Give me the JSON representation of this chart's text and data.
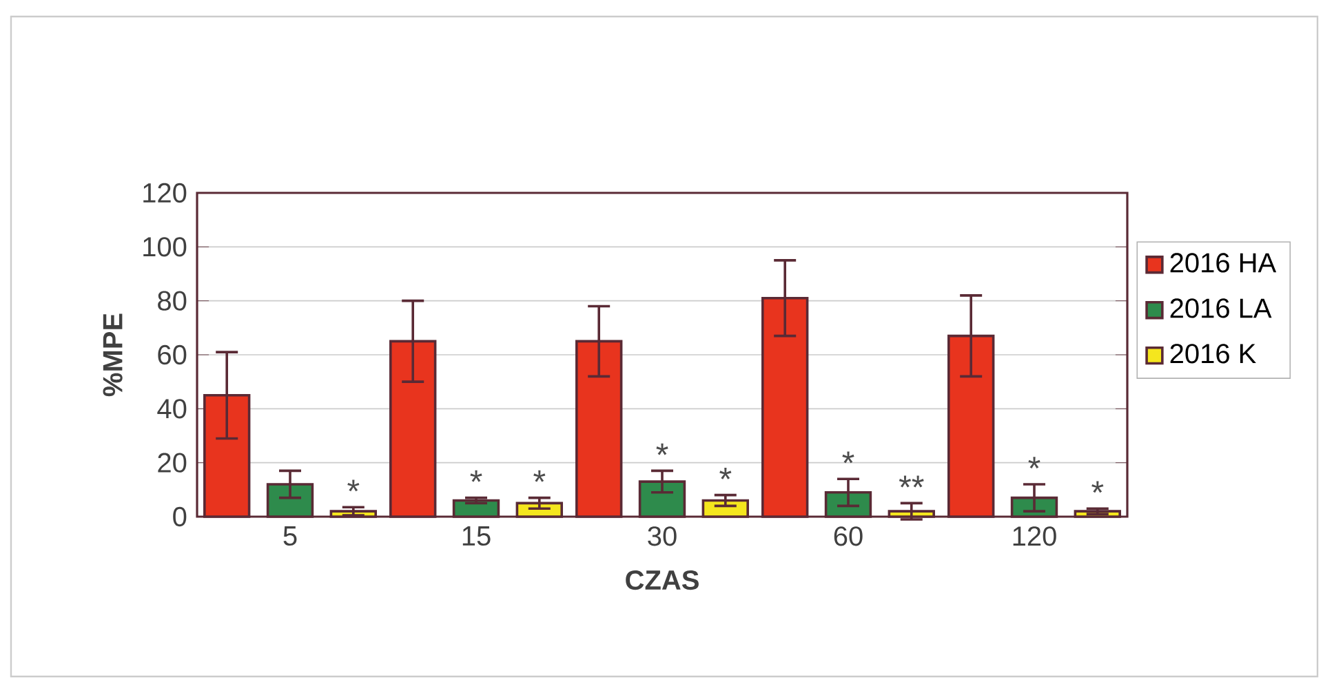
{
  "chart_data": {
    "type": "bar",
    "xlabel": "CZAS",
    "ylabel": "%MPE",
    "categories": [
      "5",
      "15",
      "30",
      "60",
      "120"
    ],
    "series": [
      {
        "name": "2016 HA",
        "color": "#e8341e",
        "values": [
          45,
          65,
          65,
          81,
          67
        ],
        "errors": [
          16,
          15,
          13,
          14,
          15
        ]
      },
      {
        "name": "2016 LA",
        "color": "#2e8b4c",
        "values": [
          12,
          6,
          13,
          9,
          7
        ],
        "errors": [
          5,
          1,
          4,
          5,
          5
        ]
      },
      {
        "name": "2016 K",
        "color": "#f5e61e",
        "values": [
          2,
          5,
          6,
          2,
          2
        ],
        "errors": [
          1.5,
          2,
          2,
          3,
          1
        ]
      }
    ],
    "ylim": [
      0,
      120
    ],
    "yticks": [
      0,
      20,
      40,
      60,
      80,
      100,
      120
    ],
    "grid": "y",
    "legend": "right",
    "annotations": [
      {
        "text": "*",
        "x": "5",
        "y": 2
      },
      {
        "text": "*",
        "x": "15",
        "y": 6
      },
      {
        "text": "*",
        "x": "15",
        "y": 5
      },
      {
        "text": "*",
        "x": "30",
        "y": 13
      },
      {
        "text": "*",
        "x": "30",
        "y": 8
      },
      {
        "text": "*",
        "x": "60",
        "y": 9
      },
      {
        "text": "**",
        "x": "60",
        "y": 2
      },
      {
        "text": "*",
        "x": "120",
        "y": 7
      },
      {
        "text": "*",
        "x": "120",
        "y": 2
      }
    ]
  }
}
